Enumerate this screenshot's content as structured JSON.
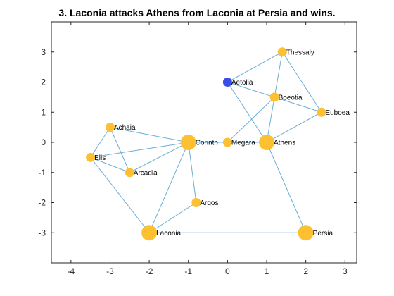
{
  "chart_data": {
    "type": "scatter",
    "title": "3. Laconia attacks Athens from Laconia at Persia and wins.",
    "xlabel": "",
    "ylabel": "",
    "xlim": [
      -4.5,
      3.3
    ],
    "ylim": [
      -4,
      4
    ],
    "xticks": [
      -4,
      -3,
      -2,
      -1,
      0,
      1,
      2,
      3
    ],
    "yticks": [
      -3,
      -2,
      -1,
      0,
      1,
      2,
      3
    ],
    "grid": false,
    "colors": {
      "node": "#fdc030",
      "highlight": "#3b4ee6",
      "edge": "#6baed6",
      "axis": "#262626"
    },
    "nodes": [
      {
        "name": "Thessaly",
        "x": 1.4,
        "y": 3.0,
        "size": "small",
        "color": "#fdc030"
      },
      {
        "name": "Aetolia",
        "x": 0.0,
        "y": 2.0,
        "size": "small",
        "color": "#3b4ee6"
      },
      {
        "name": "Boeotia",
        "x": 1.2,
        "y": 1.5,
        "size": "small",
        "color": "#fdc030"
      },
      {
        "name": "Euboea",
        "x": 2.4,
        "y": 1.0,
        "size": "small",
        "color": "#fdc030"
      },
      {
        "name": "Achaia",
        "x": -3.0,
        "y": 0.5,
        "size": "small",
        "color": "#fdc030"
      },
      {
        "name": "Corinth",
        "x": -1.0,
        "y": 0.0,
        "size": "large",
        "color": "#fdc030"
      },
      {
        "name": "Megara",
        "x": 0.0,
        "y": 0.0,
        "size": "small",
        "color": "#fdc030"
      },
      {
        "name": "Athens",
        "x": 1.0,
        "y": 0.0,
        "size": "large",
        "color": "#fdc030"
      },
      {
        "name": "Elis",
        "x": -3.5,
        "y": -0.5,
        "size": "small",
        "color": "#fdc030"
      },
      {
        "name": "Arcadia",
        "x": -2.5,
        "y": -1.0,
        "size": "small",
        "color": "#fdc030"
      },
      {
        "name": "Argos",
        "x": -0.8,
        "y": -2.0,
        "size": "small",
        "color": "#fdc030"
      },
      {
        "name": "Laconia",
        "x": -2.0,
        "y": -3.0,
        "size": "large",
        "color": "#fdc030"
      },
      {
        "name": "Persia",
        "x": 2.0,
        "y": -3.0,
        "size": "large",
        "color": "#fdc030"
      }
    ],
    "edges": [
      [
        "Thessaly",
        "Aetolia"
      ],
      [
        "Thessaly",
        "Boeotia"
      ],
      [
        "Thessaly",
        "Euboea"
      ],
      [
        "Aetolia",
        "Boeotia"
      ],
      [
        "Aetolia",
        "Athens"
      ],
      [
        "Boeotia",
        "Euboea"
      ],
      [
        "Boeotia",
        "Athens"
      ],
      [
        "Boeotia",
        "Megara"
      ],
      [
        "Euboea",
        "Athens"
      ],
      [
        "Megara",
        "Athens"
      ],
      [
        "Megara",
        "Corinth"
      ],
      [
        "Corinth",
        "Achaia"
      ],
      [
        "Corinth",
        "Elis"
      ],
      [
        "Corinth",
        "Arcadia"
      ],
      [
        "Corinth",
        "Argos"
      ],
      [
        "Corinth",
        "Laconia"
      ],
      [
        "Achaia",
        "Elis"
      ],
      [
        "Achaia",
        "Arcadia"
      ],
      [
        "Elis",
        "Arcadia"
      ],
      [
        "Elis",
        "Laconia"
      ],
      [
        "Argos",
        "Laconia"
      ],
      [
        "Laconia",
        "Persia"
      ],
      [
        "Athens",
        "Persia"
      ]
    ]
  }
}
